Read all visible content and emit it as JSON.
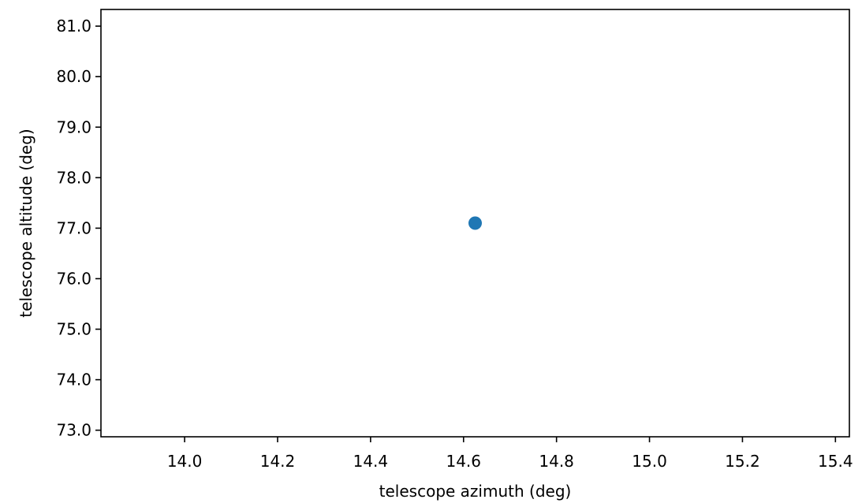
{
  "chart_data": {
    "type": "scatter",
    "xlabel": "telescope azimuth (deg)",
    "ylabel": "telescope altitude (deg)",
    "xlim": [
      13.82,
      15.43
    ],
    "ylim": [
      72.87,
      81.33
    ],
    "xticks": [
      14.0,
      14.2,
      14.4,
      14.6,
      14.8,
      15.0,
      15.2,
      15.4
    ],
    "xtick_labels": [
      "14.0",
      "14.2",
      "14.4",
      "14.6",
      "14.8",
      "15.0",
      "15.2",
      "15.4"
    ],
    "yticks": [
      73.0,
      74.0,
      75.0,
      76.0,
      77.0,
      78.0,
      79.0,
      80.0,
      81.0
    ],
    "ytick_labels": [
      "73.0",
      "74.0",
      "75.0",
      "76.0",
      "77.0",
      "78.0",
      "79.0",
      "80.0",
      "81.0"
    ],
    "grid": false,
    "series": [
      {
        "points": [
          {
            "x": 14.625,
            "y": 77.1
          }
        ],
        "color": "#1f77b4"
      }
    ]
  }
}
